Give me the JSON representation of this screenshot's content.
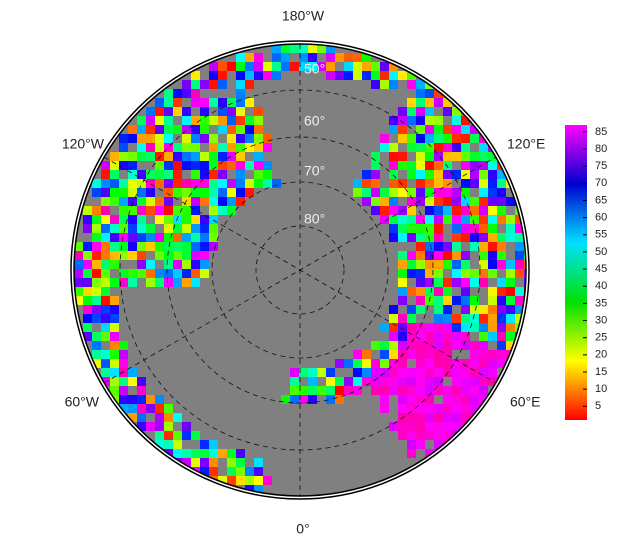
{
  "map": {
    "lon_labels": [
      "180°W",
      "120°E",
      "60°E",
      "0°",
      "60°W",
      "120°W"
    ],
    "lat_labels": [
      "50°",
      "60°",
      "70°",
      "80°"
    ],
    "colorbar": {
      "range": [
        1,
        87
      ],
      "ticks": [
        5,
        10,
        15,
        20,
        25,
        30,
        35,
        40,
        45,
        50,
        55,
        60,
        65,
        70,
        75,
        80,
        85
      ]
    }
  }
}
